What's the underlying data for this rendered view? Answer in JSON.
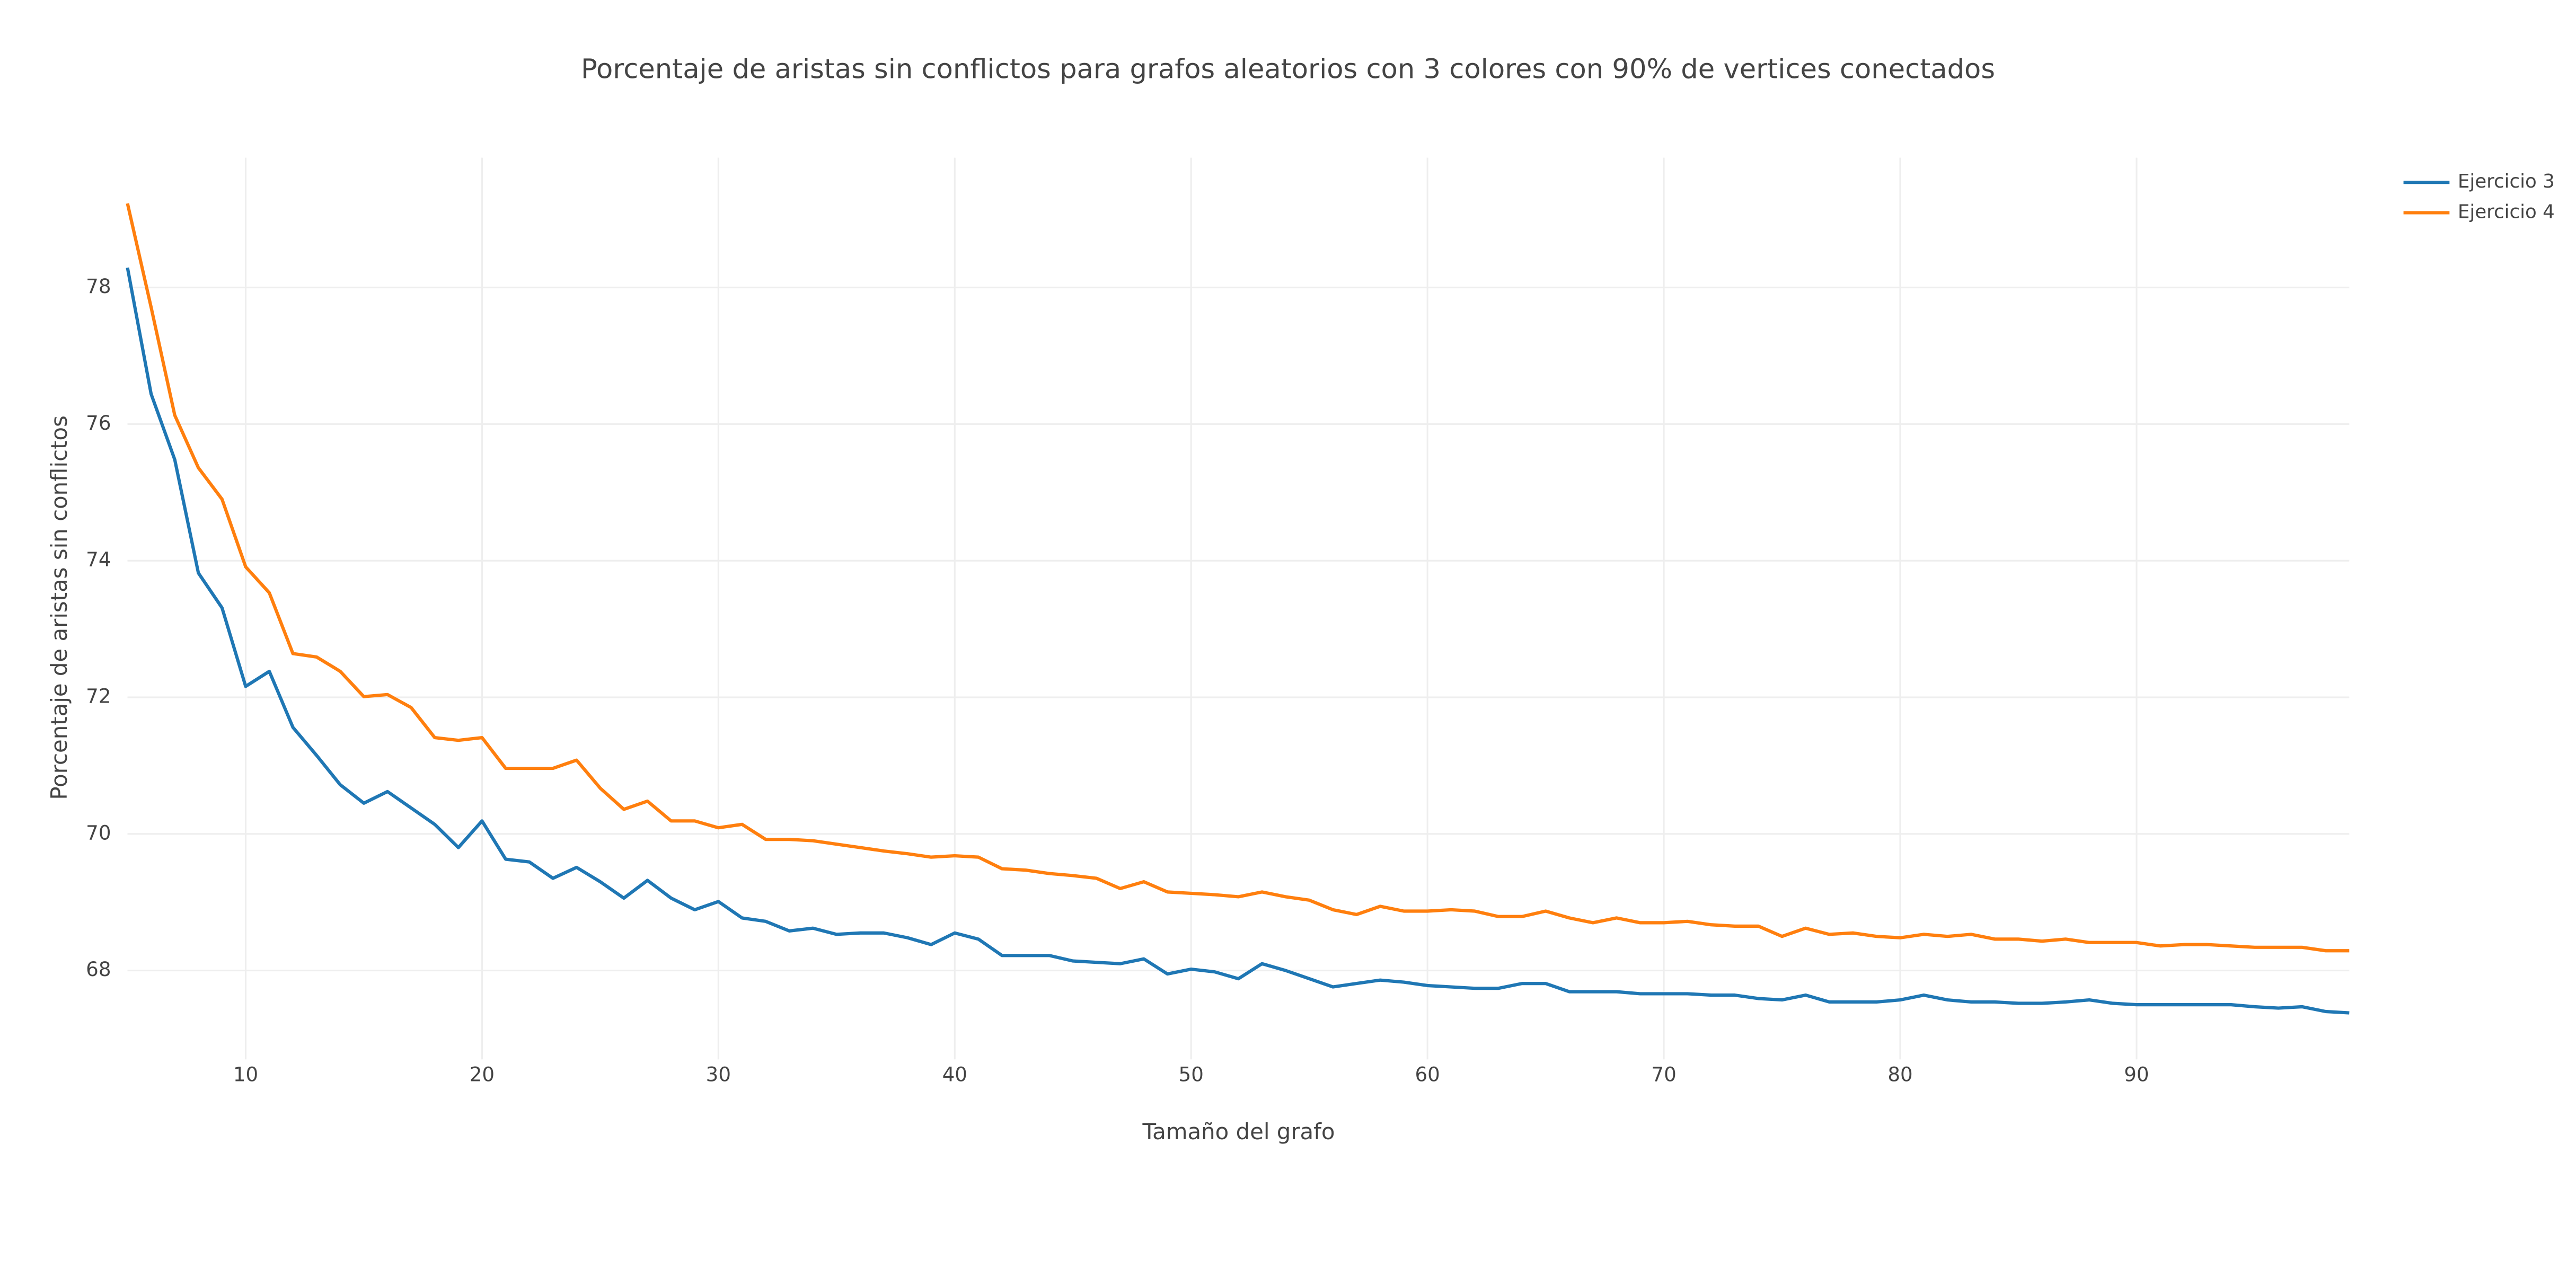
{
  "chart_data": {
    "type": "line",
    "title": "Porcentaje de aristas sin conflictos para grafos aleatorios con 3 colores con 90% de vertices conectados",
    "x_label": "Tamaño del grafo",
    "y_label": "Porcentaje de aristas sin conflictos",
    "x": [
      5,
      6,
      7,
      8,
      9,
      10,
      11,
      12,
      13,
      14,
      15,
      16,
      17,
      18,
      19,
      20,
      21,
      22,
      23,
      24,
      25,
      26,
      27,
      28,
      29,
      30,
      31,
      32,
      33,
      34,
      35,
      36,
      37,
      38,
      39,
      40,
      41,
      42,
      43,
      44,
      45,
      46,
      47,
      48,
      49,
      50,
      51,
      52,
      53,
      54,
      55,
      56,
      57,
      58,
      59,
      60,
      61,
      62,
      63,
      64,
      65,
      66,
      67,
      68,
      69,
      70,
      71,
      72,
      73,
      74,
      75,
      76,
      77,
      78,
      79,
      80,
      81,
      82,
      83,
      84,
      85,
      86,
      87,
      88,
      89,
      90,
      91,
      92,
      93,
      94,
      95,
      96,
      97,
      98,
      99
    ],
    "series": [
      {
        "name": "Ejercicio 3",
        "color": "#1f77b4",
        "values": [
          78.29,
          76.44,
          75.48,
          73.82,
          73.31,
          72.16,
          72.38,
          71.56,
          71.15,
          70.72,
          70.45,
          70.62,
          70.38,
          70.14,
          69.8,
          70.19,
          69.63,
          69.59,
          69.35,
          69.51,
          69.3,
          69.06,
          69.32,
          69.06,
          68.89,
          69.01,
          68.77,
          68.72,
          68.58,
          68.62,
          68.53,
          68.55,
          68.55,
          68.48,
          68.38,
          68.55,
          68.46,
          68.22,
          68.22,
          68.22,
          68.14,
          68.12,
          68.1,
          68.17,
          67.95,
          68.02,
          67.98,
          67.88,
          68.1,
          68.0,
          67.88,
          67.76,
          67.81,
          67.86,
          67.83,
          67.78,
          67.76,
          67.74,
          67.74,
          67.81,
          67.81,
          67.69,
          67.69,
          67.69,
          67.66,
          67.66,
          67.66,
          67.64,
          67.64,
          67.59,
          67.57,
          67.64,
          67.54,
          67.54,
          67.54,
          67.57,
          67.64,
          67.57,
          67.54,
          67.54,
          67.52,
          67.52,
          67.54,
          67.57,
          67.52,
          67.5,
          67.5,
          67.5,
          67.5,
          67.5,
          67.47,
          67.45,
          67.47,
          67.4,
          67.38
        ]
      },
      {
        "name": "Ejercicio 4",
        "color": "#ff7f0e",
        "values": [
          79.23,
          77.71,
          76.13,
          75.36,
          74.9,
          73.91,
          73.53,
          72.64,
          72.59,
          72.38,
          72.01,
          72.04,
          71.85,
          71.41,
          71.37,
          71.41,
          70.96,
          70.96,
          70.96,
          71.08,
          70.67,
          70.36,
          70.48,
          70.19,
          70.19,
          70.09,
          70.14,
          69.92,
          69.92,
          69.9,
          69.85,
          69.8,
          69.75,
          69.71,
          69.66,
          69.68,
          69.66,
          69.49,
          69.47,
          69.42,
          69.39,
          69.35,
          69.2,
          69.3,
          69.15,
          69.13,
          69.11,
          69.08,
          69.15,
          69.08,
          69.03,
          68.89,
          68.82,
          68.94,
          68.87,
          68.87,
          68.89,
          68.87,
          68.79,
          68.79,
          68.87,
          68.77,
          68.7,
          68.77,
          68.7,
          68.7,
          68.72,
          68.67,
          68.65,
          68.65,
          68.5,
          68.62,
          68.53,
          68.55,
          68.5,
          68.48,
          68.53,
          68.5,
          68.53,
          68.46,
          68.46,
          68.43,
          68.46,
          68.41,
          68.41,
          68.41,
          68.36,
          68.38,
          68.38,
          68.36,
          68.34,
          68.34,
          68.34,
          68.29,
          68.29
        ]
      }
    ],
    "xlim": [
      5,
      99
    ],
    "ylim": [
      66.7,
      79.9
    ],
    "xticks": [
      10,
      20,
      30,
      40,
      50,
      60,
      70,
      80,
      90
    ],
    "yticks": [
      68,
      70,
      72,
      74,
      76,
      78
    ],
    "grid": true,
    "legend": "top-right"
  }
}
